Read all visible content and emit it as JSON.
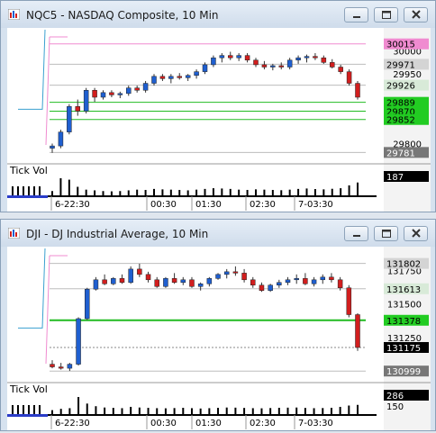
{
  "windows": [
    {
      "title": "NQC5 - NASDAQ Composite, 10 Min",
      "price_badges": [
        {
          "label": "30015",
          "value": 30015,
          "bg": "#f08bd0",
          "fg": "#000000"
        },
        {
          "label": "29971",
          "value": 29971,
          "bg": "#d4d4d4",
          "fg": "#000000"
        },
        {
          "label": "29926",
          "value": 29926,
          "bg": "#d8ead8",
          "fg": "#000000"
        },
        {
          "label": "29889",
          "value": 29889,
          "bg": "#22cc22",
          "fg": "#000000"
        },
        {
          "label": "29870",
          "value": 29870,
          "bg": "#22cc22",
          "fg": "#000000"
        },
        {
          "label": "29852",
          "value": 29852,
          "bg": "#22cc22",
          "fg": "#000000"
        },
        {
          "label": "29781",
          "value": 29781,
          "bg": "#777777",
          "fg": "#ffffff"
        }
      ],
      "axis_ticks": [
        "30000",
        "29950",
        "29800"
      ],
      "indicator_label": "Tick Vol",
      "indicator_badge": "187",
      "time_labels": [
        "6-22:30",
        "00:30",
        "01:30",
        "02:30",
        "7-03:30"
      ]
    },
    {
      "title": "DJI - DJ Industrial Average, 10 Min",
      "price_badges": [
        {
          "label": "131802",
          "value": 131802,
          "bg": "#d4d4d4",
          "fg": "#000000"
        },
        {
          "label": "131613",
          "value": 131613,
          "bg": "#d8ead8",
          "fg": "#000000"
        },
        {
          "label": "131378",
          "value": 131378,
          "bg": "#22cc22",
          "fg": "#000000"
        },
        {
          "label": "131175",
          "value": 131175,
          "bg": "#000000",
          "fg": "#ffffff"
        },
        {
          "label": "130999",
          "value": 130999,
          "bg": "#777777",
          "fg": "#ffffff"
        }
      ],
      "axis_ticks": [
        "131750",
        "131500",
        "131250"
      ],
      "indicator_label": "Tick Vol",
      "indicator_badge": "286",
      "indicator_axis_tick": "150",
      "time_labels": [
        "6-22:30",
        "00:30",
        "01:30",
        "02:30",
        "7-03:30"
      ]
    }
  ],
  "colors": {
    "up": "#1f5fd0",
    "down": "#d21e1e",
    "level": "#22bb22"
  },
  "icons": [
    "app-icon",
    "minimize-icon",
    "restore-icon",
    "close-icon"
  ],
  "chart_data": [
    {
      "type": "candlestick",
      "symbol": "NQC5",
      "interval": "10 Min",
      "ylim": [
        29770,
        30030
      ],
      "candles": [
        [
          29790,
          29800,
          29780,
          29795
        ],
        [
          29795,
          29830,
          29790,
          29825
        ],
        [
          29825,
          29885,
          29820,
          29880
        ],
        [
          29880,
          29895,
          29860,
          29870
        ],
        [
          29870,
          29920,
          29865,
          29915
        ],
        [
          29915,
          29920,
          29890,
          29900
        ],
        [
          29900,
          29915,
          29895,
          29910
        ],
        [
          29910,
          29915,
          29900,
          29905
        ],
        [
          29905,
          29912,
          29898,
          29908
        ],
        [
          29908,
          29925,
          29903,
          29920
        ],
        [
          29920,
          29925,
          29910,
          29915
        ],
        [
          29915,
          29935,
          29910,
          29930
        ],
        [
          29930,
          29950,
          29925,
          29945
        ],
        [
          29945,
          29950,
          29935,
          29940
        ],
        [
          29940,
          29950,
          29930,
          29945
        ],
        [
          29945,
          29952,
          29938,
          29942
        ],
        [
          29942,
          29950,
          29935,
          29947
        ],
        [
          29947,
          29960,
          29940,
          29955
        ],
        [
          29955,
          29975,
          29950,
          29970
        ],
        [
          29970,
          29990,
          29965,
          29985
        ],
        [
          29985,
          29995,
          29975,
          29990
        ],
        [
          29990,
          29998,
          29980,
          29985
        ],
        [
          29985,
          29995,
          29978,
          29990
        ],
        [
          29990,
          29995,
          29975,
          29980
        ],
        [
          29980,
          29985,
          29965,
          29970
        ],
        [
          29970,
          29978,
          29960,
          29965
        ],
        [
          29965,
          29972,
          29958,
          29968
        ],
        [
          29968,
          29975,
          29960,
          29965
        ],
        [
          29965,
          29985,
          29960,
          29980
        ],
        [
          29980,
          29990,
          29972,
          29985
        ],
        [
          29985,
          29992,
          29975,
          29988
        ],
        [
          29988,
          29995,
          29980,
          29985
        ],
        [
          29985,
          29990,
          29972,
          29975
        ],
        [
          29975,
          29982,
          29962,
          29965
        ],
        [
          29965,
          29970,
          29950,
          29955
        ],
        [
          29955,
          29960,
          29925,
          29930
        ],
        [
          29930,
          29935,
          29895,
          29900
        ]
      ],
      "volume": [
        30,
        120,
        110,
        60,
        40,
        35,
        30,
        28,
        30,
        35,
        40,
        38,
        45,
        42,
        40,
        38,
        35,
        40,
        45,
        50,
        48,
        45,
        40,
        38,
        42,
        40,
        38,
        36,
        40,
        45,
        48,
        44,
        42,
        46,
        50,
        70,
        90
      ]
    },
    {
      "type": "candlestick",
      "symbol": "DJI",
      "interval": "10 Min",
      "ylim": [
        130960,
        131860
      ],
      "candles": [
        [
          131050,
          131080,
          131020,
          131030
        ],
        [
          131030,
          131060,
          131010,
          131020
        ],
        [
          131020,
          131060,
          131000,
          131050
        ],
        [
          131050,
          131400,
          131040,
          131390
        ],
        [
          131390,
          131620,
          131380,
          131610
        ],
        [
          131610,
          131700,
          131600,
          131680
        ],
        [
          131680,
          131720,
          131640,
          131650
        ],
        [
          131650,
          131700,
          131640,
          131690
        ],
        [
          131690,
          131720,
          131650,
          131660
        ],
        [
          131660,
          131780,
          131650,
          131760
        ],
        [
          131760,
          131800,
          131700,
          131720
        ],
        [
          131720,
          131740,
          131660,
          131680
        ],
        [
          131680,
          131700,
          131620,
          131630
        ],
        [
          131630,
          131700,
          131620,
          131690
        ],
        [
          131690,
          131730,
          131650,
          131660
        ],
        [
          131660,
          131700,
          131640,
          131680
        ],
        [
          131680,
          131700,
          131620,
          131630
        ],
        [
          131630,
          131660,
          131600,
          131650
        ],
        [
          131650,
          131700,
          131630,
          131690
        ],
        [
          131690,
          131730,
          131680,
          131720
        ],
        [
          131720,
          131760,
          131690,
          131740
        ],
        [
          131740,
          131780,
          131710,
          131730
        ],
        [
          131730,
          131760,
          131660,
          131680
        ],
        [
          131680,
          131700,
          131620,
          131640
        ],
        [
          131640,
          131660,
          131590,
          131600
        ],
        [
          131600,
          131650,
          131590,
          131640
        ],
        [
          131640,
          131680,
          131620,
          131660
        ],
        [
          131660,
          131700,
          131640,
          131680
        ],
        [
          131680,
          131720,
          131650,
          131690
        ],
        [
          131690,
          131730,
          131640,
          131650
        ],
        [
          131650,
          131700,
          131630,
          131680
        ],
        [
          131680,
          131720,
          131650,
          131700
        ],
        [
          131700,
          131730,
          131660,
          131680
        ],
        [
          131680,
          131700,
          131600,
          131620
        ],
        [
          131620,
          131640,
          131400,
          131420
        ],
        [
          131420,
          131430,
          131150,
          131175
        ]
      ],
      "volume": [
        60,
        80,
        90,
        260,
        160,
        120,
        100,
        95,
        90,
        110,
        100,
        95,
        90,
        88,
        92,
        96,
        90,
        85,
        90,
        95,
        100,
        98,
        94,
        90,
        88,
        92,
        96,
        98,
        100,
        94,
        90,
        92,
        96,
        110,
        130,
        140
      ]
    }
  ]
}
